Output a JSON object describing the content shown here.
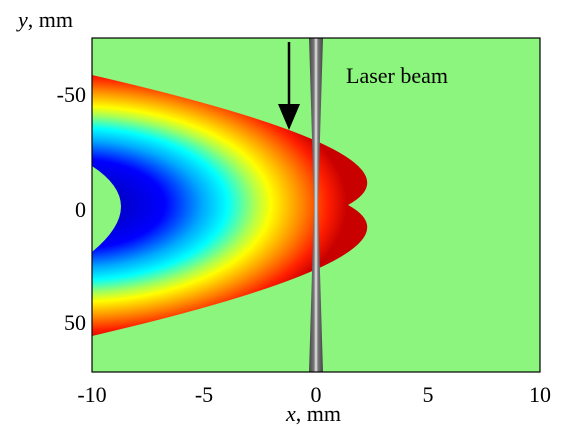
{
  "figure": {
    "annotation": "Laser beam",
    "x_axis": {
      "var": "x",
      "unit": ", mm",
      "ticks": [
        "-10",
        "-5",
        "0",
        "5",
        "10"
      ]
    },
    "y_axis": {
      "var": "y",
      "unit": ", mm",
      "ticks": [
        "-50",
        "0",
        "50"
      ]
    },
    "colors": {
      "background": "#8cf57d",
      "colormap": [
        "#00009c",
        "#0000ff",
        "#00ffff",
        "#ffff00",
        "#ff7f00",
        "#ff0000",
        "#c80000"
      ],
      "beam": "#555555",
      "arrow": "#000000"
    }
  }
}
